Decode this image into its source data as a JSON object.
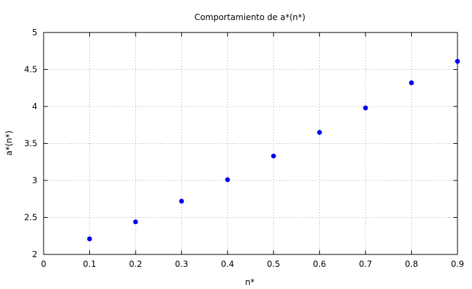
{
  "chart_data": {
    "type": "scatter",
    "title": "Comportamiento de a*(n*)",
    "xlabel": "n*",
    "ylabel": "a*(n*)",
    "xlim": [
      0,
      0.9
    ],
    "ylim": [
      2,
      5
    ],
    "xticks": [
      "0",
      "0.1",
      "0.2",
      "0.3",
      "0.4",
      "0.5",
      "0.6",
      "0.7",
      "0.8",
      "0.9"
    ],
    "yticks": [
      "2",
      "2.5",
      "3",
      "3.5",
      "4",
      "4.5",
      "5"
    ],
    "grid": true,
    "marker_color": "#0000ee",
    "series": [
      {
        "x": [
          0.1,
          0.2,
          0.3,
          0.4,
          0.5,
          0.6,
          0.7,
          0.8,
          0.9
        ],
        "y": [
          2.21,
          2.44,
          2.72,
          3.01,
          3.33,
          3.65,
          3.98,
          4.32,
          4.61
        ]
      }
    ]
  }
}
